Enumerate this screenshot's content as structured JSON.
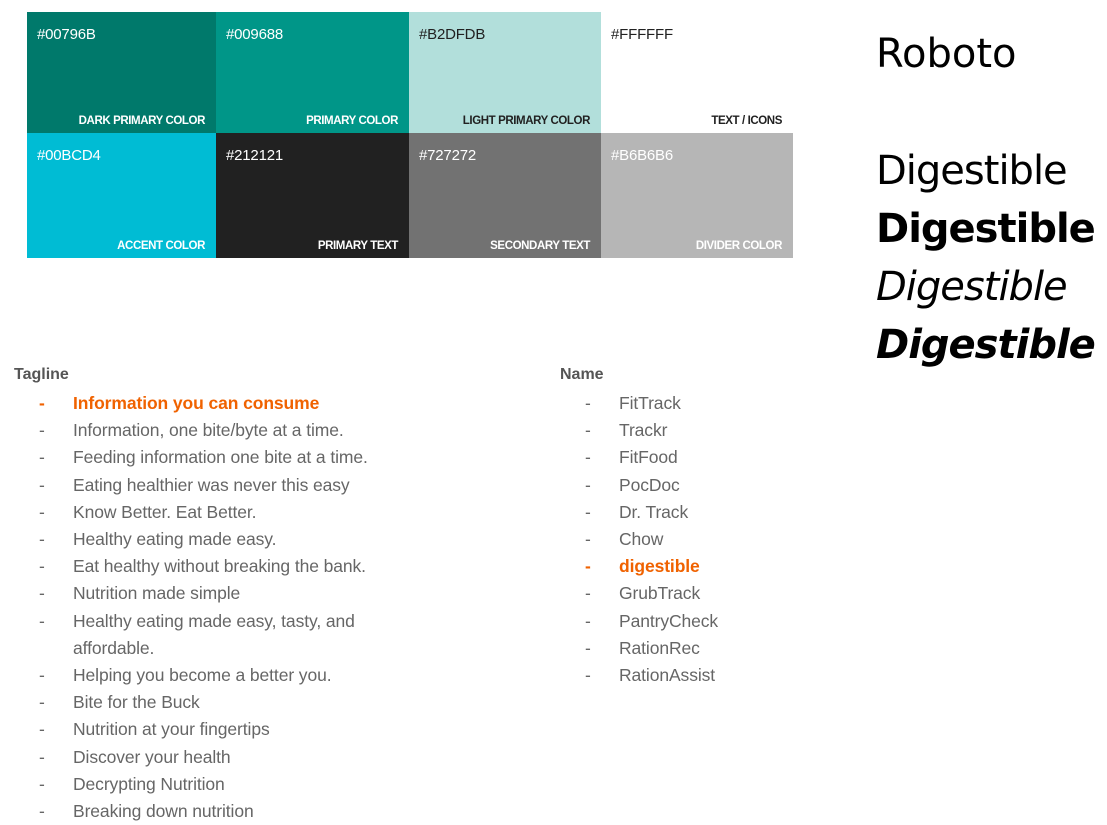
{
  "palette": [
    {
      "hex": "#00796B",
      "label": "DARK PRIMARY COLOR",
      "color": "#00796B",
      "tone": "dark"
    },
    {
      "hex": "#009688",
      "label": "PRIMARY COLOR",
      "color": "#009688",
      "tone": "dark"
    },
    {
      "hex": "#B2DFDB",
      "label": "LIGHT PRIMARY COLOR",
      "color": "#B2DFDB",
      "tone": "light"
    },
    {
      "hex": "#FFFFFF",
      "label": "TEXT / ICONS",
      "color": "#FFFFFF",
      "tone": "light"
    },
    {
      "hex": "#00BCD4",
      "label": "ACCENT COLOR",
      "color": "#00BCD4",
      "tone": "dark"
    },
    {
      "hex": "#212121",
      "label": "PRIMARY TEXT",
      "color": "#212121",
      "tone": "dark"
    },
    {
      "hex": "#727272",
      "label": "SECONDARY TEXT",
      "color": "#727272",
      "tone": "dark"
    },
    {
      "hex": "#B6B6B6",
      "label": "DIVIDER COLOR",
      "color": "#B6B6B6",
      "tone": "dark"
    }
  ],
  "font": {
    "name": "Roboto",
    "samples": [
      {
        "text": "Digestible",
        "style": "regular"
      },
      {
        "text": "Digestible",
        "style": "bold"
      },
      {
        "text": "Digestible",
        "style": "italic"
      },
      {
        "text": "Digestible",
        "style": "bold-italic"
      }
    ]
  },
  "tagline": {
    "title": "Tagline",
    "items": [
      {
        "text": "Information you can consume",
        "highlight": true
      },
      {
        "text": "Information, one bite/byte at a time.",
        "highlight": false
      },
      {
        "text": "Feeding information one bite at a time.",
        "highlight": false
      },
      {
        "text": "Eating healthier was never this easy",
        "highlight": false
      },
      {
        "text": "Know Better. Eat Better.",
        "highlight": false
      },
      {
        "text": "Healthy eating made easy.",
        "highlight": false
      },
      {
        "text": "Eat healthy without breaking the bank.",
        "highlight": false
      },
      {
        "text": "Nutrition made simple",
        "highlight": false
      },
      {
        "text": "Healthy eating made easy, tasty, and affordable.",
        "highlight": false
      },
      {
        "text": "Helping you become a better you.",
        "highlight": false
      },
      {
        "text": "Bite for the Buck",
        "highlight": false
      },
      {
        "text": "Nutrition at your fingertips",
        "highlight": false
      },
      {
        "text": "Discover your health",
        "highlight": false
      },
      {
        "text": "Decrypting Nutrition",
        "highlight": false
      },
      {
        "text": "Breaking down nutrition",
        "highlight": false
      }
    ]
  },
  "names": {
    "title": "Name",
    "items": [
      {
        "text": "FitTrack",
        "highlight": false
      },
      {
        "text": "Trackr",
        "highlight": false
      },
      {
        "text": "FitFood",
        "highlight": false
      },
      {
        "text": "PocDoc",
        "highlight": false
      },
      {
        "text": "Dr. Track",
        "highlight": false
      },
      {
        "text": "Chow",
        "highlight": false
      },
      {
        "text": "digestible",
        "highlight": true
      },
      {
        "text": "GrubTrack",
        "highlight": false
      },
      {
        "text": "PantryCheck",
        "highlight": false
      },
      {
        "text": "RationRec",
        "highlight": false
      },
      {
        "text": "RationAssist",
        "highlight": false
      }
    ]
  },
  "bullet": "-"
}
